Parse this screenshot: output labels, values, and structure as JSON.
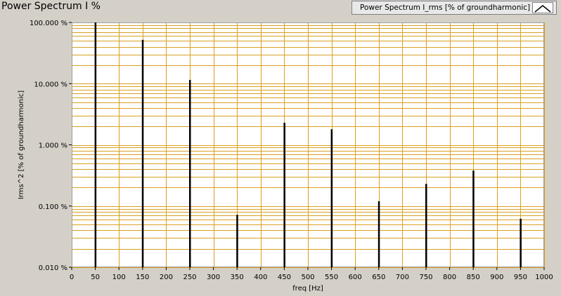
{
  "window": {
    "title": "Power Spectrum I %"
  },
  "chart_data": {
    "type": "bar",
    "title": "Power Spectrum I %",
    "xlabel": "freq [Hz]",
    "ylabel": "Irms^2 [% of groundharmonic]",
    "xlim": [
      0,
      1000
    ],
    "ylim": [
      0.01,
      100
    ],
    "yscale": "log",
    "grid": true,
    "legend_position": "top-right",
    "x_ticks": [
      0,
      50,
      100,
      150,
      200,
      250,
      300,
      350,
      400,
      450,
      500,
      550,
      600,
      650,
      700,
      750,
      800,
      850,
      900,
      950,
      1000
    ],
    "y_ticks": [
      "0.010 %",
      "0.100 %",
      "1.000 %",
      "10.000 %",
      "100.000 %"
    ],
    "y_tick_values": [
      0.01,
      0.1,
      1,
      10,
      100
    ],
    "series": [
      {
        "name": "Power Spectrum I_rms [% of groundharmonic]",
        "x": [
          50,
          150,
          250,
          350,
          450,
          550,
          650,
          750,
          850,
          950
        ],
        "values": [
          100,
          52,
          11.5,
          0.072,
          2.3,
          1.8,
          0.12,
          0.23,
          0.38,
          0.062
        ]
      }
    ],
    "colors": {
      "background": "#ffffff",
      "grid": "#d8a020",
      "bars": "#000000",
      "frame": "#d4d0c8"
    }
  }
}
